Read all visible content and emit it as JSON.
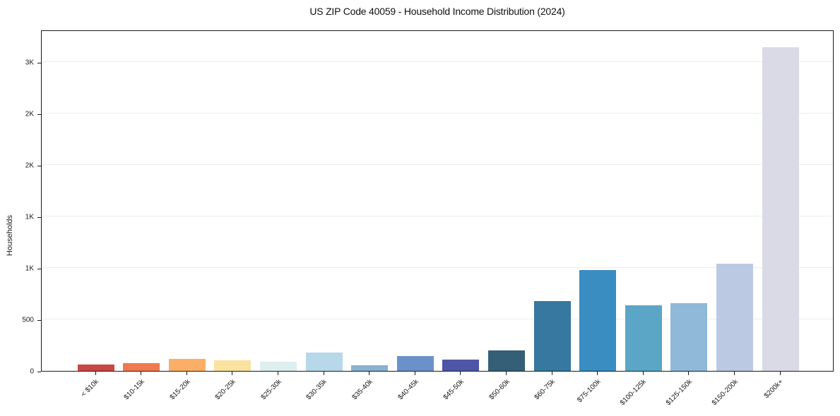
{
  "title": "US ZIP Code 40059 - Household Income Distribution (2024)",
  "colors": {
    "background": "#ffffff",
    "axis": "#1a1a1a",
    "grid": "#ebecf3",
    "text": "#1a1a1a"
  },
  "chart_data": {
    "type": "bar",
    "title": "US ZIP Code 40059 - Household Income Distribution (2024)",
    "xlabel": "",
    "ylabel": "Households",
    "categories": [
      "< $10k",
      "$10-15k",
      "$15-20k",
      "$20-25k",
      "$25-30k",
      "$30-35k",
      "$35-40k",
      "$40-45k",
      "$45-50k",
      "$50-60k",
      "$60-75k",
      "$75-100k",
      "$100-125k",
      "$125-150k",
      "$150-200k",
      "$200k+"
    ],
    "values": [
      60,
      78,
      115,
      105,
      88,
      180,
      58,
      143,
      108,
      198,
      680,
      980,
      640,
      655,
      1040,
      3145
    ],
    "bar_colors": [
      "#c94742",
      "#ef7a52",
      "#fbae68",
      "#fae3a0",
      "#ddefee",
      "#b6d8e8",
      "#8ab1d2",
      "#6a92c8",
      "#4e55a6",
      "#345f77",
      "#36789f",
      "#3a8dc1",
      "#5ba6c6",
      "#90b8d9",
      "#bcc9e2",
      "#d9dae6"
    ],
    "ylim": [
      0,
      3315
    ],
    "yticks": [
      {
        "value": 0,
        "label": "0"
      },
      {
        "value": 500,
        "label": "500"
      },
      {
        "value": 1000,
        "label": "1K"
      },
      {
        "value": 1500,
        "label": "1K"
      },
      {
        "value": 2000,
        "label": "2K"
      },
      {
        "value": 2500,
        "label": "2K"
      },
      {
        "value": 3000,
        "label": "3K"
      }
    ],
    "grid": "horizontal",
    "legend": "none"
  }
}
